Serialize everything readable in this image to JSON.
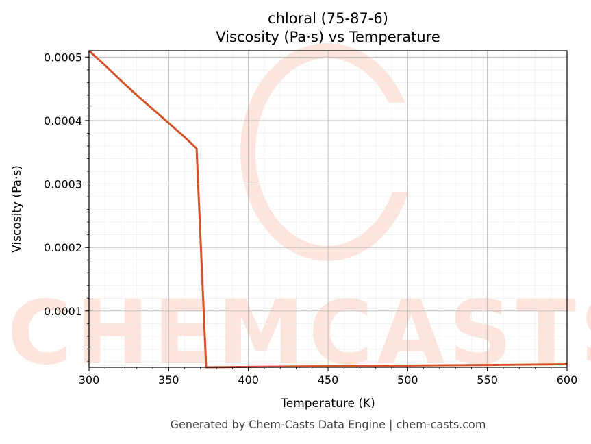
{
  "chart_data": {
    "type": "line",
    "title": "chloral (75-87-6)",
    "subtitle": "Viscosity (Pa·s) vs Temperature",
    "xlabel": "Temperature (K)",
    "ylabel": "Viscosity (Pa·s)",
    "xlim": [
      300,
      600
    ],
    "ylim": [
      1.13e-05,
      0.00051
    ],
    "xticks": [
      300,
      350,
      400,
      450,
      500,
      550,
      600
    ],
    "xtick_labels": [
      "300",
      "350",
      "400",
      "450",
      "500",
      "550",
      "600"
    ],
    "yticks": [
      0.0001,
      0.0002,
      0.0003,
      0.0004,
      0.0005
    ],
    "ytick_labels": [
      "0.0001",
      "0.0002",
      "0.0003",
      "0.0004",
      "0.0005"
    ],
    "grid": true,
    "series": [
      {
        "color": "#d4522a",
        "x": [
          300,
          310,
          320,
          330,
          340,
          350,
          360,
          367.5,
          373.5,
          400,
          450,
          500,
          550,
          600
        ],
        "y": [
          0.00051,
          0.000487,
          0.000463,
          0.00044,
          0.000418,
          0.000396,
          0.000374,
          0.000356,
          1.13e-05,
          1.2e-05,
          1.3e-05,
          1.4e-05,
          1.5e-05,
          1.62e-05
        ]
      }
    ]
  },
  "watermark": {
    "text": "CHEMCASTS",
    "color": "#fdd5cc"
  },
  "footer": {
    "text": "Generated by Chem-Casts Data Engine | chem-casts.com"
  }
}
